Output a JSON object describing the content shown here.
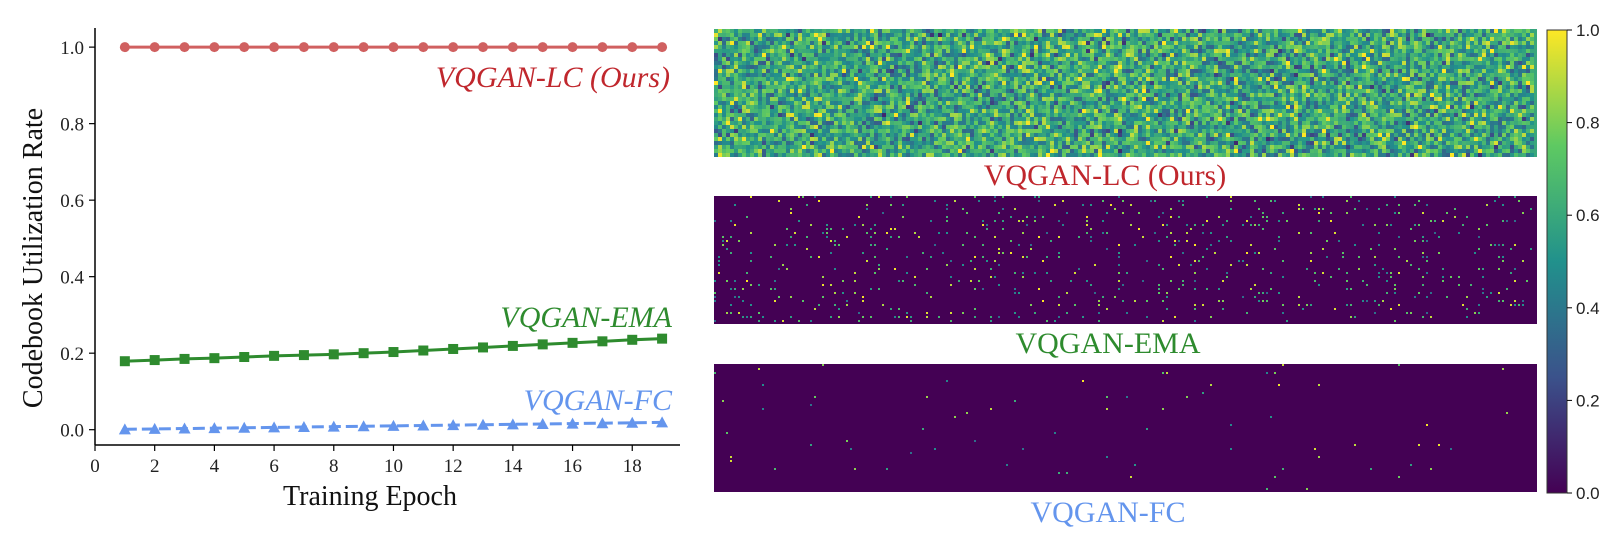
{
  "chart_data": [
    {
      "type": "line",
      "xlabel": "Training Epoch",
      "ylabel": "Codebook Utilization Rate",
      "xlim": [
        0,
        19.6
      ],
      "ylim": [
        -0.04,
        1.05
      ],
      "xticks": [
        0,
        2,
        4,
        6,
        8,
        10,
        12,
        14,
        16,
        18
      ],
      "yticks": [
        "0.0",
        "0.2",
        "0.4",
        "0.6",
        "0.8",
        "1.0"
      ],
      "grid": false,
      "x": [
        1,
        2,
        3,
        4,
        5,
        6,
        7,
        8,
        9,
        10,
        11,
        12,
        13,
        14,
        15,
        16,
        17,
        18,
        19
      ],
      "series": [
        {
          "name": "VQGAN-LC (Ours)",
          "color": "#d06060",
          "marker": "circle",
          "values": [
            1.0,
            1.0,
            1.0,
            1.0,
            1.0,
            1.0,
            1.0,
            1.0,
            1.0,
            1.0,
            1.0,
            1.0,
            1.0,
            1.0,
            1.0,
            1.0,
            1.0,
            1.0,
            1.0
          ]
        },
        {
          "name": "VQGAN-EMA",
          "color": "#2e8b2e",
          "marker": "square",
          "values": [
            0.179,
            0.182,
            0.185,
            0.187,
            0.19,
            0.193,
            0.195,
            0.197,
            0.2,
            0.203,
            0.207,
            0.211,
            0.215,
            0.219,
            0.223,
            0.227,
            0.231,
            0.235,
            0.238
          ]
        },
        {
          "name": "VQGAN-FC",
          "color": "#6495ed",
          "marker": "triangle",
          "values": [
            0.001,
            0.002,
            0.003,
            0.004,
            0.005,
            0.006,
            0.007,
            0.008,
            0.009,
            0.01,
            0.011,
            0.012,
            0.013,
            0.014,
            0.015,
            0.016,
            0.017,
            0.018,
            0.019
          ]
        }
      ],
      "label_colors": {
        "lc": "#c0272d",
        "ema": "#2e8b2e",
        "fc": "#6495ed"
      }
    },
    {
      "type": "heatmap",
      "colormap": "viridis",
      "colorbar_ticks": [
        "0.0",
        "0.2",
        "0.4",
        "0.6",
        "0.8",
        "1.0"
      ],
      "colorbar_range": [
        0.0,
        1.0
      ],
      "panels": [
        {
          "name": "VQGAN-LC (Ours)",
          "color": "#c0272d",
          "active_fraction": 1.0,
          "mean_value": 0.6
        },
        {
          "name": "VQGAN-EMA",
          "color": "#2e8b2e",
          "active_fraction": 0.2,
          "mean_value": 0.0
        },
        {
          "name": "VQGAN-FC",
          "color": "#6495ed",
          "active_fraction": 0.02,
          "mean_value": 0.0
        }
      ]
    }
  ]
}
